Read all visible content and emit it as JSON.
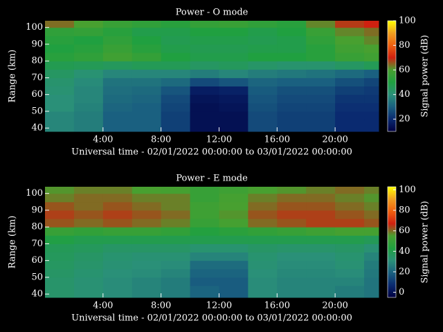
{
  "chart_data": [
    {
      "type": "heatmap",
      "title": "Power - O mode",
      "xlabel": "Universal time - 02/01/2022 00:00:00 to 03/01/2022 00:00:00",
      "ylabel": "Range (km)",
      "colorbar_label": "Signal power (dB)",
      "x_bins": [
        0,
        2,
        4,
        6,
        8,
        10,
        12,
        14,
        16,
        18,
        20,
        22,
        23
      ],
      "y_bins": [
        38,
        45,
        50,
        55,
        60,
        65,
        70,
        75,
        80,
        85,
        90,
        95,
        100,
        104
      ],
      "z": [
        [
          38,
          36,
          30,
          30,
          24,
          14,
          14,
          26,
          24,
          24,
          20,
          20
        ],
        [
          38,
          36,
          30,
          30,
          24,
          14,
          14,
          26,
          24,
          24,
          20,
          20
        ],
        [
          40,
          37,
          31,
          30,
          25,
          14,
          15,
          27,
          25,
          25,
          21,
          21
        ],
        [
          40,
          38,
          32,
          31,
          26,
          15,
          16,
          28,
          26,
          26,
          22,
          22
        ],
        [
          41,
          38,
          33,
          32,
          28,
          17,
          18,
          29,
          27,
          27,
          24,
          23
        ],
        [
          42,
          39,
          34,
          34,
          32,
          26,
          28,
          31,
          30,
          30,
          27,
          25
        ],
        [
          44,
          41,
          38,
          38,
          38,
          36,
          38,
          36,
          35,
          34,
          32,
          30
        ],
        [
          47,
          46,
          45,
          46,
          46,
          44,
          45,
          43,
          42,
          42,
          44,
          46
        ],
        [
          52,
          54,
          58,
          55,
          50,
          48,
          48,
          50,
          50,
          52,
          56,
          58
        ],
        [
          50,
          52,
          56,
          52,
          48,
          47,
          47,
          48,
          48,
          52,
          58,
          60
        ],
        [
          52,
          50,
          54,
          50,
          47,
          48,
          48,
          47,
          48,
          54,
          60,
          62
        ],
        [
          54,
          55,
          52,
          48,
          48,
          50,
          50,
          48,
          50,
          56,
          62,
          64
        ],
        [
          64,
          60,
          56,
          54,
          52,
          55,
          56,
          54,
          52,
          62,
          68,
          70
        ]
      ],
      "xlim": [
        0,
        23
      ],
      "ylim": [
        38,
        104
      ],
      "xticks": [
        {
          "value": 4,
          "label": "4:00"
        },
        {
          "value": 8,
          "label": "8:00"
        },
        {
          "value": 12,
          "label": "12:00"
        },
        {
          "value": 16,
          "label": "16:00"
        },
        {
          "value": 20,
          "label": "20:00"
        }
      ],
      "yticks": [
        40,
        50,
        60,
        70,
        80,
        90,
        100
      ],
      "clim": [
        10,
        100
      ],
      "cticks": [
        20,
        40,
        60,
        80,
        100
      ],
      "colormap": [
        "#000040",
        "#0a2a70",
        "#1a6080",
        "#2a9078",
        "#20a040",
        "#48a030",
        "#d02010",
        "#f06010",
        "#f0a020",
        "#ffff00"
      ]
    },
    {
      "type": "heatmap",
      "title": "Power - E mode",
      "xlabel": "Universal time - 02/01/2022 00:00:00 to 03/01/2022 00:00:00",
      "ylabel": "Range (km)",
      "colorbar_label": "Signal power (dB)",
      "x_bins": [
        0,
        2,
        4,
        6,
        8,
        10,
        12,
        14,
        16,
        18,
        20,
        22,
        23
      ],
      "y_bins": [
        38,
        45,
        50,
        55,
        60,
        65,
        70,
        75,
        80,
        85,
        90,
        95,
        100,
        104
      ],
      "z": [
        [
          34,
          32,
          30,
          28,
          26,
          20,
          18,
          30,
          28,
          28,
          26,
          24
        ],
        [
          34,
          32,
          30,
          28,
          26,
          18,
          18,
          30,
          28,
          28,
          28,
          24
        ],
        [
          35,
          33,
          31,
          30,
          28,
          20,
          20,
          31,
          29,
          29,
          30,
          25
        ],
        [
          36,
          34,
          32,
          31,
          30,
          22,
          22,
          32,
          30,
          30,
          32,
          26
        ],
        [
          37,
          35,
          33,
          32,
          32,
          28,
          28,
          33,
          31,
          31,
          33,
          28
        ],
        [
          38,
          37,
          35,
          35,
          35,
          33,
          33,
          35,
          34,
          34,
          35,
          32
        ],
        [
          42,
          40,
          40,
          40,
          40,
          40,
          40,
          40,
          40,
          40,
          40,
          38
        ],
        [
          50,
          48,
          50,
          50,
          48,
          44,
          46,
          48,
          50,
          52,
          54,
          54
        ],
        [
          62,
          60,
          62,
          60,
          58,
          50,
          54,
          60,
          62,
          64,
          64,
          62
        ],
        [
          64,
          62,
          64,
          62,
          60,
          52,
          56,
          62,
          64,
          64,
          62,
          60
        ],
        [
          62,
          60,
          62,
          60,
          58,
          52,
          55,
          60,
          62,
          62,
          60,
          58
        ],
        [
          58,
          60,
          60,
          58,
          58,
          50,
          54,
          58,
          60,
          60,
          58,
          56
        ],
        [
          56,
          58,
          58,
          55,
          54,
          50,
          52,
          55,
          56,
          58,
          60,
          58
        ]
      ],
      "xlim": [
        0,
        23
      ],
      "ylim": [
        38,
        104
      ],
      "xticks": [
        {
          "value": 4,
          "label": "4:00"
        },
        {
          "value": 8,
          "label": "8:00"
        },
        {
          "value": 12,
          "label": "12:00"
        },
        {
          "value": 16,
          "label": "16:00"
        },
        {
          "value": 20,
          "label": "20:00"
        }
      ],
      "yticks": [
        40,
        50,
        60,
        70,
        80,
        90,
        100
      ],
      "clim": [
        -5,
        103
      ],
      "cticks": [
        0,
        20,
        40,
        60,
        80,
        100
      ],
      "colormap": [
        "#000040",
        "#0a2a70",
        "#1a6080",
        "#2a9078",
        "#20a040",
        "#48a030",
        "#d02010",
        "#f06010",
        "#f0a020",
        "#ffff00"
      ]
    }
  ]
}
